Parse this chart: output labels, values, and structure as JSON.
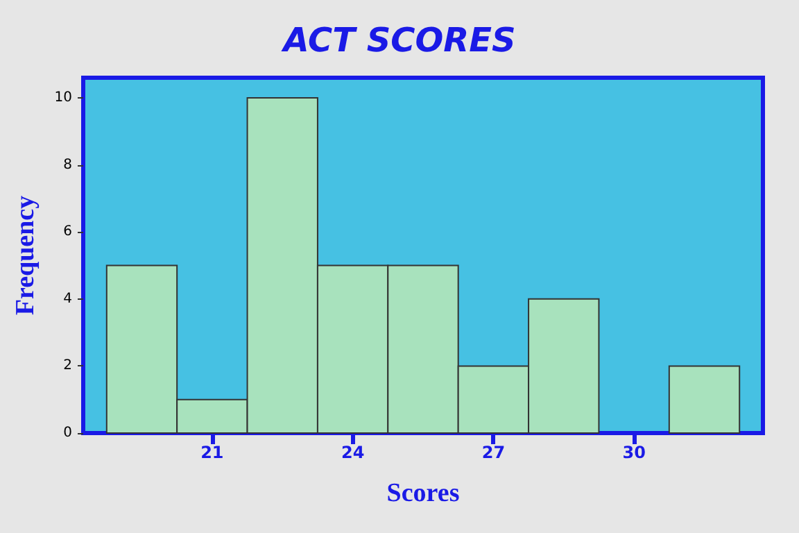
{
  "chart_data": {
    "type": "histogram",
    "title": "ACT SCORES",
    "xlabel": "Scores",
    "ylabel": "Frequency",
    "bins": [
      18.75,
      20.25,
      21.75,
      23.25,
      24.75,
      26.25,
      27.75,
      29.25,
      30.75,
      32.25
    ],
    "values": [
      5,
      1,
      10,
      5,
      5,
      2,
      4,
      0,
      2
    ],
    "color": "#a8e2bd",
    "xlim": [
      18.25,
      32.75
    ],
    "xticks": [
      21,
      24,
      27,
      30
    ],
    "ylim": [
      0,
      10.6
    ],
    "yticks": [
      0,
      2,
      4,
      6,
      8,
      10
    ],
    "grid": false
  }
}
